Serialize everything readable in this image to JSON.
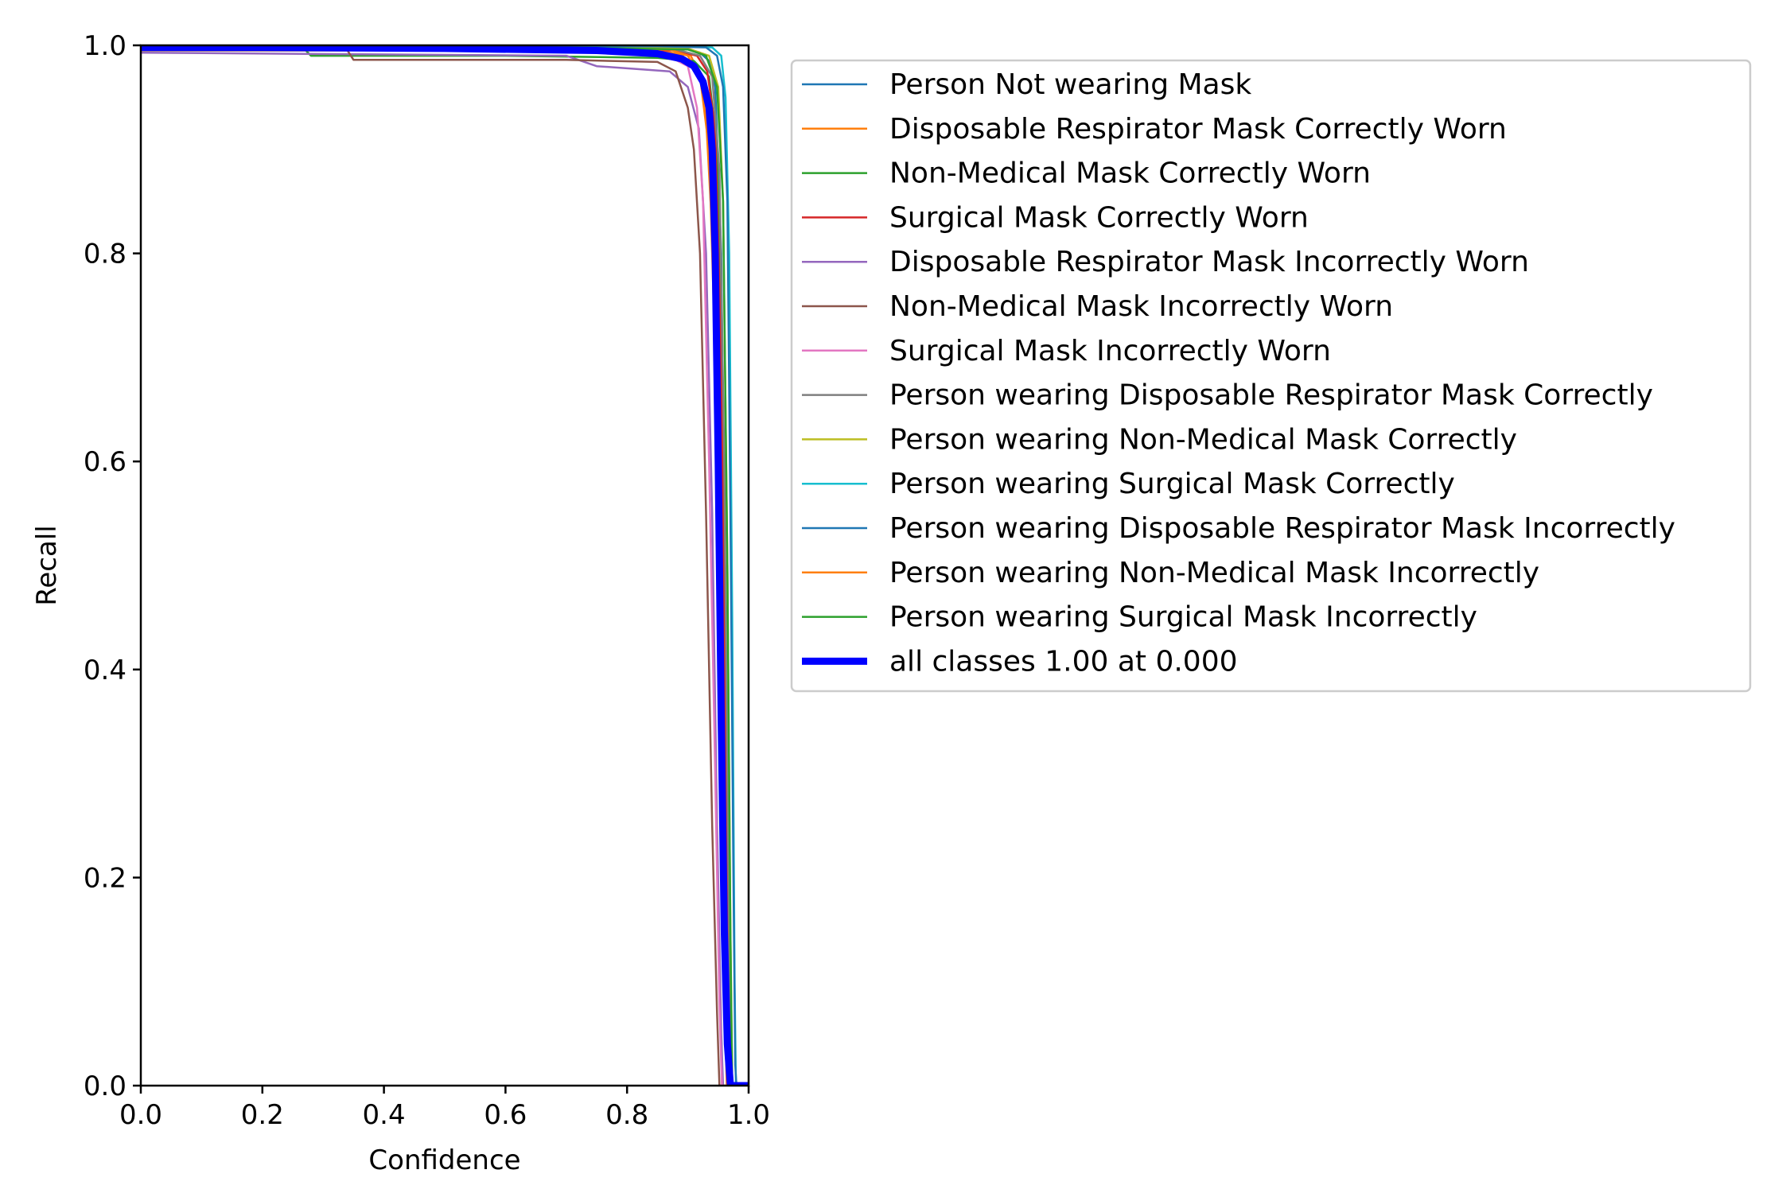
{
  "chart_data": {
    "type": "line",
    "title": "",
    "xlabel": "Confidence",
    "ylabel": "Recall",
    "xlim": [
      0.0,
      1.0
    ],
    "ylim": [
      0.0,
      1.0
    ],
    "xticks": [
      "0.0",
      "0.2",
      "0.4",
      "0.6",
      "0.8",
      "1.0"
    ],
    "yticks": [
      "0.0",
      "0.2",
      "0.4",
      "0.6",
      "0.8",
      "1.0"
    ],
    "grid": false,
    "legend_position": "outside-right-top",
    "series": [
      {
        "name": "Person Not wearing Mask",
        "color": "#1f77b4",
        "width": "thin",
        "points": [
          [
            0.0,
            0.998
          ],
          [
            0.5,
            0.998
          ],
          [
            0.85,
            0.997
          ],
          [
            0.9,
            0.996
          ],
          [
            0.92,
            0.993
          ],
          [
            0.935,
            0.985
          ],
          [
            0.945,
            0.96
          ],
          [
            0.955,
            0.8
          ],
          [
            0.962,
            0.4
          ],
          [
            0.968,
            0.1
          ],
          [
            0.972,
            0.0
          ],
          [
            1.0,
            0.0
          ]
        ]
      },
      {
        "name": "Disposable Respirator Mask Correctly Worn",
        "color": "#ff7f0e",
        "width": "thin",
        "points": [
          [
            0.0,
            0.997
          ],
          [
            0.6,
            0.997
          ],
          [
            0.85,
            0.995
          ],
          [
            0.905,
            0.99
          ],
          [
            0.92,
            0.97
          ],
          [
            0.93,
            0.93
          ],
          [
            0.942,
            0.8
          ],
          [
            0.952,
            0.5
          ],
          [
            0.96,
            0.15
          ],
          [
            0.966,
            0.0
          ],
          [
            1.0,
            0.0
          ]
        ]
      },
      {
        "name": "Non-Medical Mask Correctly Worn",
        "color": "#2ca02c",
        "width": "thin",
        "points": [
          [
            0.0,
            0.996
          ],
          [
            0.27,
            0.996
          ],
          [
            0.28,
            0.99
          ],
          [
            0.6,
            0.99
          ],
          [
            0.85,
            0.988
          ],
          [
            0.91,
            0.985
          ],
          [
            0.935,
            0.97
          ],
          [
            0.948,
            0.9
          ],
          [
            0.958,
            0.6
          ],
          [
            0.965,
            0.2
          ],
          [
            0.97,
            0.0
          ],
          [
            1.0,
            0.0
          ]
        ]
      },
      {
        "name": "Surgical Mask Correctly Worn",
        "color": "#d62728",
        "width": "thin",
        "points": [
          [
            0.0,
            0.998
          ],
          [
            0.7,
            0.997
          ],
          [
            0.88,
            0.995
          ],
          [
            0.915,
            0.99
          ],
          [
            0.932,
            0.975
          ],
          [
            0.945,
            0.92
          ],
          [
            0.955,
            0.7
          ],
          [
            0.962,
            0.3
          ],
          [
            0.968,
            0.05
          ],
          [
            0.971,
            0.0
          ],
          [
            1.0,
            0.0
          ]
        ]
      },
      {
        "name": "Disposable Respirator Mask Incorrectly Worn",
        "color": "#9467bd",
        "width": "thin",
        "points": [
          [
            0.0,
            0.993
          ],
          [
            0.7,
            0.99
          ],
          [
            0.75,
            0.98
          ],
          [
            0.87,
            0.975
          ],
          [
            0.9,
            0.96
          ],
          [
            0.918,
            0.92
          ],
          [
            0.93,
            0.8
          ],
          [
            0.94,
            0.55
          ],
          [
            0.948,
            0.25
          ],
          [
            0.955,
            0.05
          ],
          [
            0.958,
            0.0
          ],
          [
            1.0,
            0.0
          ]
        ]
      },
      {
        "name": "Non-Medical Mask Incorrectly Worn",
        "color": "#8c564b",
        "width": "thin",
        "points": [
          [
            0.0,
            0.995
          ],
          [
            0.34,
            0.995
          ],
          [
            0.35,
            0.986
          ],
          [
            0.7,
            0.986
          ],
          [
            0.85,
            0.984
          ],
          [
            0.88,
            0.975
          ],
          [
            0.9,
            0.94
          ],
          [
            0.91,
            0.9
          ],
          [
            0.92,
            0.8
          ],
          [
            0.93,
            0.55
          ],
          [
            0.94,
            0.25
          ],
          [
            0.948,
            0.07
          ],
          [
            0.952,
            0.0
          ],
          [
            1.0,
            0.0
          ]
        ]
      },
      {
        "name": "Surgical Mask Incorrectly Worn",
        "color": "#e377c2",
        "width": "thin",
        "points": [
          [
            0.0,
            0.996
          ],
          [
            0.6,
            0.995
          ],
          [
            0.86,
            0.992
          ],
          [
            0.9,
            0.98
          ],
          [
            0.915,
            0.94
          ],
          [
            0.925,
            0.85
          ],
          [
            0.935,
            0.6
          ],
          [
            0.945,
            0.3
          ],
          [
            0.952,
            0.08
          ],
          [
            0.956,
            0.0
          ],
          [
            1.0,
            0.0
          ]
        ]
      },
      {
        "name": "Person wearing Disposable Respirator Mask Correctly",
        "color": "#7f7f7f",
        "width": "thin",
        "points": [
          [
            0.0,
            0.997
          ],
          [
            0.6,
            0.997
          ],
          [
            0.88,
            0.996
          ],
          [
            0.92,
            0.99
          ],
          [
            0.94,
            0.97
          ],
          [
            0.952,
            0.88
          ],
          [
            0.96,
            0.6
          ],
          [
            0.966,
            0.25
          ],
          [
            0.97,
            0.05
          ],
          [
            0.972,
            0.0
          ],
          [
            1.0,
            0.0
          ]
        ]
      },
      {
        "name": "Person wearing Non-Medical Mask Correctly",
        "color": "#bcbd22",
        "width": "thin",
        "points": [
          [
            0.0,
            0.998
          ],
          [
            0.6,
            0.998
          ],
          [
            0.9,
            0.997
          ],
          [
            0.935,
            0.99
          ],
          [
            0.95,
            0.96
          ],
          [
            0.958,
            0.85
          ],
          [
            0.965,
            0.5
          ],
          [
            0.97,
            0.15
          ],
          [
            0.973,
            0.0
          ],
          [
            1.0,
            0.0
          ]
        ]
      },
      {
        "name": "Person wearing Surgical Mask Correctly",
        "color": "#17becf",
        "width": "thin",
        "points": [
          [
            0.0,
            0.999
          ],
          [
            0.9,
            0.999
          ],
          [
            0.94,
            0.998
          ],
          [
            0.955,
            0.99
          ],
          [
            0.962,
            0.95
          ],
          [
            0.968,
            0.8
          ],
          [
            0.973,
            0.45
          ],
          [
            0.977,
            0.1
          ],
          [
            0.979,
            0.0
          ],
          [
            1.0,
            0.0
          ]
        ]
      },
      {
        "name": "Person wearing Disposable Respirator Mask Incorrectly",
        "color": "#1f77b4",
        "width": "thin",
        "points": [
          [
            0.0,
            0.999
          ],
          [
            0.85,
            0.999
          ],
          [
            0.93,
            0.998
          ],
          [
            0.948,
            0.99
          ],
          [
            0.958,
            0.96
          ],
          [
            0.965,
            0.85
          ],
          [
            0.97,
            0.55
          ],
          [
            0.975,
            0.2
          ],
          [
            0.978,
            0.02
          ],
          [
            0.98,
            0.0
          ],
          [
            1.0,
            0.0
          ]
        ]
      },
      {
        "name": "Person wearing Non-Medical Mask Incorrectly",
        "color": "#ff7f0e",
        "width": "thin",
        "points": [
          [
            0.0,
            0.997
          ],
          [
            0.7,
            0.997
          ],
          [
            0.87,
            0.996
          ],
          [
            0.9,
            0.99
          ],
          [
            0.92,
            0.97
          ],
          [
            0.935,
            0.9
          ],
          [
            0.945,
            0.7
          ],
          [
            0.953,
            0.4
          ],
          [
            0.96,
            0.1
          ],
          [
            0.964,
            0.0
          ],
          [
            1.0,
            0.0
          ]
        ]
      },
      {
        "name": "Person wearing Surgical Mask Incorrectly",
        "color": "#2ca02c",
        "width": "thin",
        "points": [
          [
            0.0,
            0.998
          ],
          [
            0.7,
            0.998
          ],
          [
            0.9,
            0.996
          ],
          [
            0.93,
            0.99
          ],
          [
            0.948,
            0.96
          ],
          [
            0.958,
            0.85
          ],
          [
            0.965,
            0.5
          ],
          [
            0.97,
            0.15
          ],
          [
            0.973,
            0.0
          ],
          [
            1.0,
            0.0
          ]
        ]
      },
      {
        "name": "all classes 1.00 at 0.000",
        "color": "#0000ff",
        "width": "thick",
        "points": [
          [
            0.0,
            0.998
          ],
          [
            0.2,
            0.998
          ],
          [
            0.5,
            0.997
          ],
          [
            0.75,
            0.995
          ],
          [
            0.85,
            0.992
          ],
          [
            0.89,
            0.987
          ],
          [
            0.91,
            0.98
          ],
          [
            0.925,
            0.965
          ],
          [
            0.935,
            0.94
          ],
          [
            0.94,
            0.9
          ],
          [
            0.945,
            0.8
          ],
          [
            0.95,
            0.6
          ],
          [
            0.955,
            0.35
          ],
          [
            0.96,
            0.15
          ],
          [
            0.965,
            0.04
          ],
          [
            0.97,
            0.0
          ],
          [
            1.0,
            0.0
          ]
        ]
      }
    ]
  }
}
